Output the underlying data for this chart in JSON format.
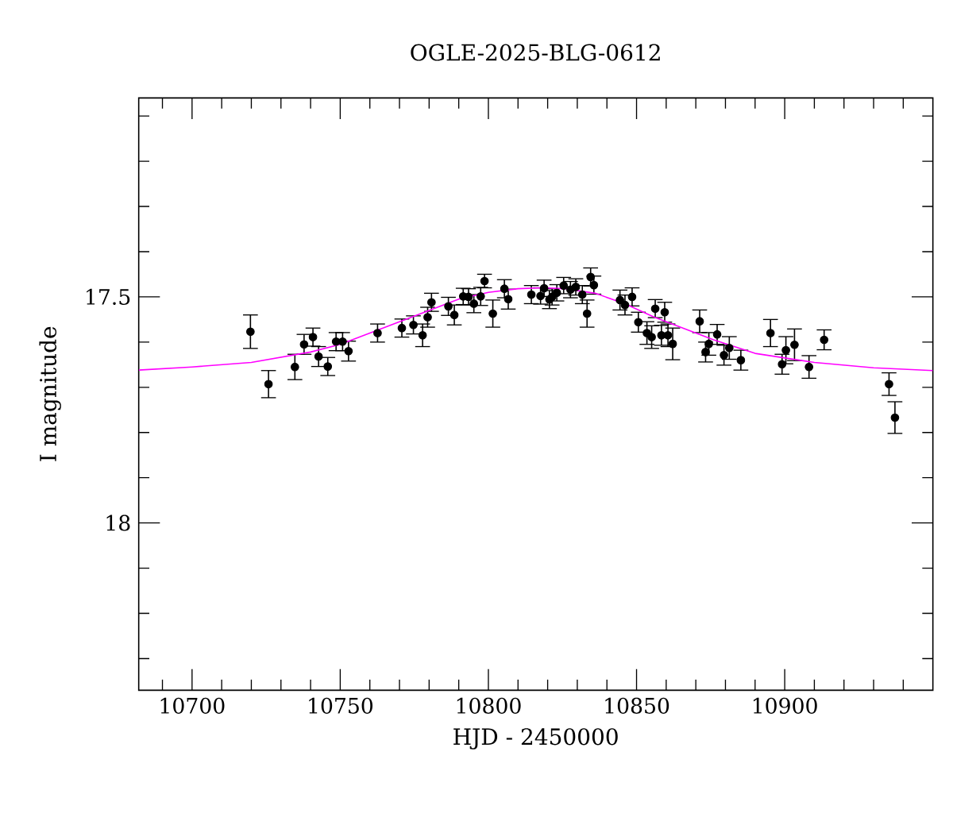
{
  "chart_data": {
    "type": "scatter",
    "title": "OGLE-2025-BLG-0612",
    "xlabel": "HJD - 2450000",
    "ylabel": "I magnitude",
    "xlim": [
      10682,
      10950
    ],
    "ylim": [
      18.37,
      17.06
    ],
    "xticks": [
      10700,
      10750,
      10800,
      10850,
      10900,
      {
        "value": 10690,
        "label": null
      },
      {
        "value": 10710,
        "label": null
      },
      {
        "value": 10720,
        "label": null
      },
      {
        "value": 10730,
        "label": null
      },
      {
        "value": 10740,
        "label": null
      },
      {
        "value": 10760,
        "label": null
      },
      {
        "value": 10770,
        "label": null
      },
      {
        "value": 10780,
        "label": null
      },
      {
        "value": 10790,
        "label": null
      },
      {
        "value": 10810,
        "label": null
      },
      {
        "value": 10820,
        "label": null
      },
      {
        "value": 10830,
        "label": null
      },
      {
        "value": 10840,
        "label": null
      },
      {
        "value": 10860,
        "label": null
      },
      {
        "value": 10870,
        "label": null
      },
      {
        "value": 10880,
        "label": null
      },
      {
        "value": 10890,
        "label": null
      },
      {
        "value": 10910,
        "label": null
      },
      {
        "value": 10920,
        "label": null
      },
      {
        "value": 10930,
        "label": null
      },
      {
        "value": 10940,
        "label": null
      }
    ],
    "yticks": [
      17.5,
      18,
      {
        "value": 17.1,
        "label": null
      },
      {
        "value": 17.2,
        "label": null
      },
      {
        "value": 17.3,
        "label": null
      },
      {
        "value": 17.4,
        "label": null
      },
      {
        "value": 17.6,
        "label": null
      },
      {
        "value": 17.7,
        "label": null
      },
      {
        "value": 17.8,
        "label": null
      },
      {
        "value": 17.9,
        "label": null
      },
      {
        "value": 18.1,
        "label": null
      },
      {
        "value": 18.2,
        "label": null
      },
      {
        "value": 18.3,
        "label": null
      }
    ],
    "grid": false,
    "series": [
      {
        "color": "#000000",
        "marker": "circle",
        "x": [
          10719.7,
          10725.8,
          10734.7,
          10737.8,
          10740.8,
          10742.7,
          10745.8,
          10748.6,
          10750.8,
          10752.8,
          10762.6,
          10770.8,
          10774.7,
          10777.8,
          10779.5,
          10780.8,
          10786.5,
          10788.5,
          10791.5,
          10793.3,
          10795.1,
          10797.4,
          10798.7,
          10801.5,
          10805.4,
          10806.7,
          10814.5,
          10817.6,
          10818.8,
          10820.6,
          10821.5,
          10823.1,
          10825.4,
          10827.7,
          10829.5,
          10831.7,
          10833.3,
          10834.5,
          10835.6,
          10844.4,
          10846.1,
          10848.5,
          10850.6,
          10853.5,
          10855.1,
          10856.3,
          10858.4,
          10859.5,
          10860.6,
          10862.2,
          10871.3,
          10873.3,
          10874.4,
          10877.2,
          10879.5,
          10881.3,
          10885.2,
          10895.2,
          10899.1,
          10900.4,
          10903.3,
          10908.2,
          10913.3,
          10935.2,
          10937.2
        ],
        "values": [
          17.577,
          17.693,
          17.655,
          17.605,
          17.589,
          17.632,
          17.654,
          17.599,
          17.599,
          17.62,
          17.58,
          17.569,
          17.562,
          17.585,
          17.545,
          17.512,
          17.521,
          17.54,
          17.499,
          17.5,
          17.515,
          17.499,
          17.465,
          17.537,
          17.482,
          17.505,
          17.495,
          17.498,
          17.481,
          17.506,
          17.5,
          17.491,
          17.475,
          17.484,
          17.478,
          17.495,
          17.537,
          17.456,
          17.474,
          17.507,
          17.518,
          17.5,
          17.556,
          17.58,
          17.589,
          17.526,
          17.585,
          17.534,
          17.585,
          17.604,
          17.554,
          17.622,
          17.604,
          17.583,
          17.629,
          17.613,
          17.64,
          17.58,
          17.649,
          17.618,
          17.606,
          17.655,
          17.595,
          17.693,
          17.767
        ],
        "errors": [
          0.037,
          0.03,
          0.028,
          0.022,
          0.02,
          0.022,
          0.02,
          0.02,
          0.02,
          0.022,
          0.02,
          0.02,
          0.02,
          0.025,
          0.022,
          0.02,
          0.02,
          0.022,
          0.018,
          0.018,
          0.02,
          0.02,
          0.015,
          0.03,
          0.02,
          0.022,
          0.02,
          0.018,
          0.018,
          0.02,
          0.018,
          0.018,
          0.018,
          0.018,
          0.018,
          0.02,
          0.03,
          0.02,
          0.02,
          0.022,
          0.022,
          0.02,
          0.022,
          0.025,
          0.025,
          0.02,
          0.022,
          0.022,
          0.025,
          0.035,
          0.025,
          0.022,
          0.025,
          0.022,
          0.022,
          0.025,
          0.022,
          0.03,
          0.022,
          0.03,
          0.035,
          0.025,
          0.022,
          0.025,
          0.035
        ]
      },
      {
        "type": "line",
        "color": "#ff00ff",
        "marker": "none",
        "line_style": "solid",
        "x": [
          10682,
          10700,
          10720,
          10740,
          10750,
          10760,
          10770,
          10780,
          10790,
          10800,
          10810,
          10818,
          10826,
          10836,
          10846,
          10856,
          10866,
          10876,
          10890,
          10910,
          10930,
          10950
        ],
        "values": [
          17.662,
          17.655,
          17.645,
          17.622,
          17.605,
          17.58,
          17.555,
          17.53,
          17.505,
          17.49,
          17.482,
          17.48,
          17.482,
          17.492,
          17.515,
          17.545,
          17.57,
          17.595,
          17.625,
          17.645,
          17.657,
          17.663
        ]
      }
    ]
  }
}
